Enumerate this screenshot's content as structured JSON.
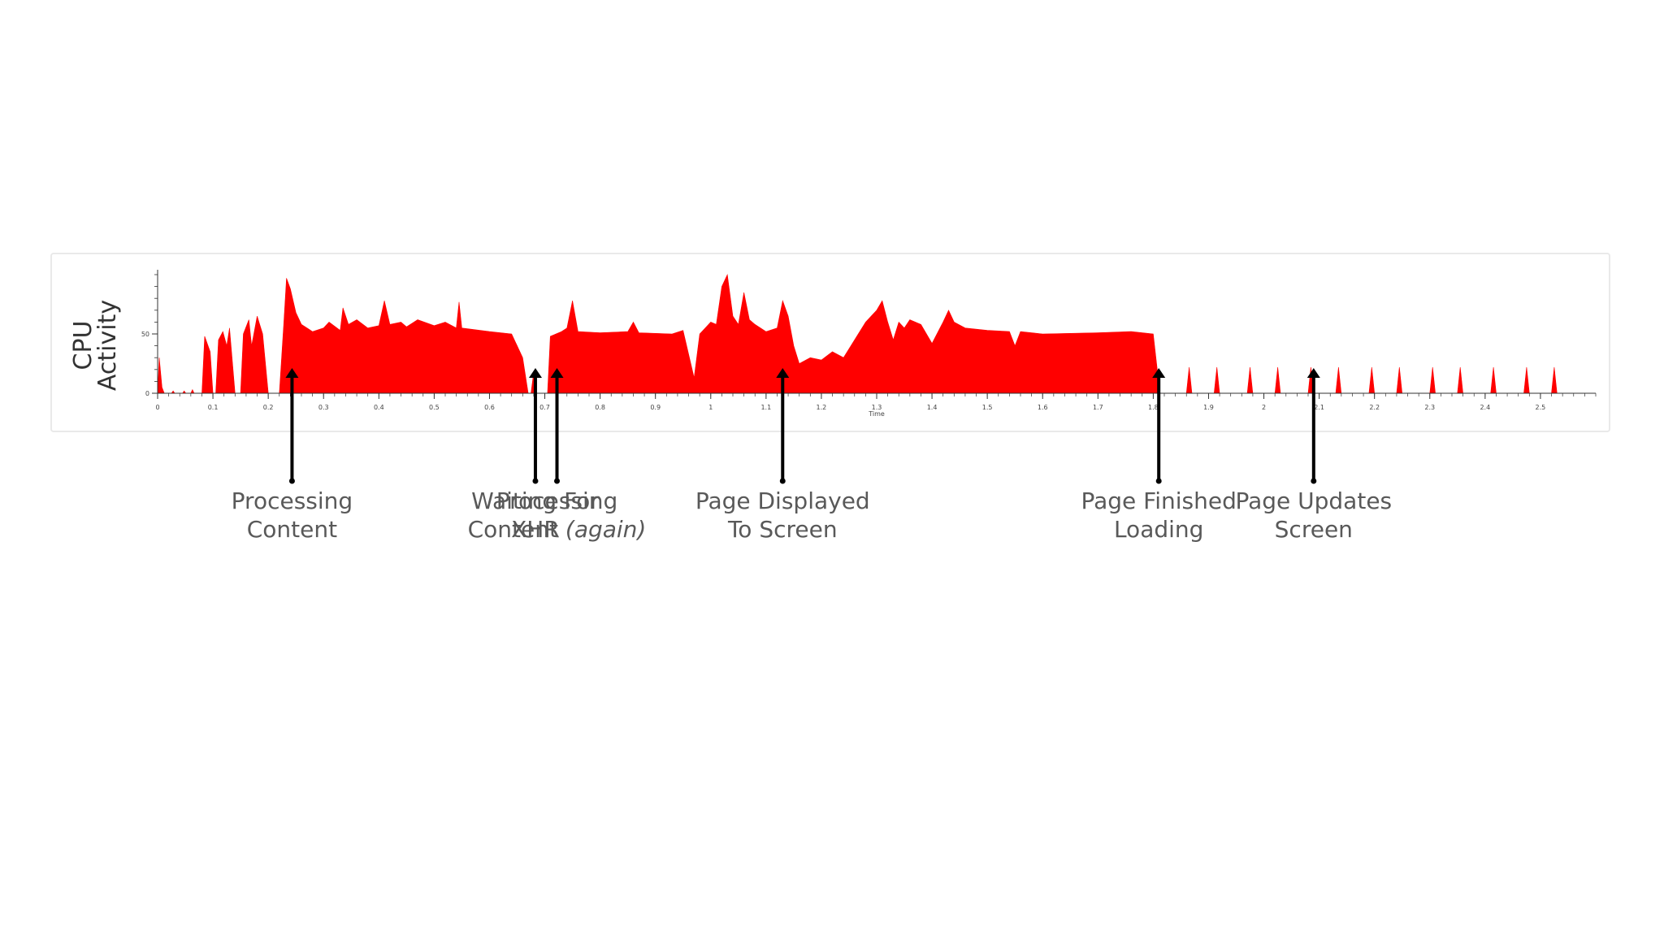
{
  "colors": {
    "area": "#ff0000",
    "arrow": "#000000",
    "label": "#595959",
    "axis": "#333333"
  },
  "chart_data": {
    "type": "area",
    "ylabel_lines": [
      "CPU",
      "Activity"
    ],
    "xlabel": "Time",
    "xlim": [
      0,
      2.6
    ],
    "ylim": [
      0,
      100
    ],
    "yticks": [
      "0",
      "50"
    ],
    "ytick_values": [
      0,
      50
    ],
    "xticks": [
      "0",
      "0.1",
      "0.2",
      "0.3",
      "0.4",
      "0.5",
      "0.6",
      "0.7",
      "0.8",
      "0.9",
      "1",
      "1.1",
      "1.2",
      "1.3",
      "1.4",
      "1.5",
      "1.6",
      "1.7",
      "1.8",
      "1.9",
      "2",
      "2.1",
      "2.2",
      "2.3",
      "2.4",
      "2.5"
    ],
    "xtick_values": [
      0,
      0.1,
      0.2,
      0.3,
      0.4,
      0.5,
      0.6,
      0.7,
      0.8,
      0.9,
      1,
      1.1,
      1.2,
      1.3,
      1.4,
      1.5,
      1.6,
      1.7,
      1.8,
      1.9,
      2,
      2.1,
      2.2,
      2.3,
      2.4,
      2.5
    ],
    "grid": false,
    "series": [
      {
        "points": [
          [
            0,
            0
          ],
          [
            0.003,
            30
          ],
          [
            0.008,
            5
          ],
          [
            0.012,
            0
          ],
          [
            0.025,
            0
          ],
          [
            0.028,
            2
          ],
          [
            0.031,
            0
          ],
          [
            0.045,
            0
          ],
          [
            0.048,
            2
          ],
          [
            0.051,
            0
          ],
          [
            0.06,
            0
          ],
          [
            0.063,
            3
          ],
          [
            0.066,
            0
          ],
          [
            0.08,
            0
          ],
          [
            0.085,
            48
          ],
          [
            0.095,
            35
          ],
          [
            0.1,
            0
          ],
          [
            0.105,
            0
          ],
          [
            0.11,
            45
          ],
          [
            0.118,
            52
          ],
          [
            0.125,
            40
          ],
          [
            0.13,
            55
          ],
          [
            0.14,
            0
          ],
          [
            0.15,
            0
          ],
          [
            0.155,
            50
          ],
          [
            0.165,
            62
          ],
          [
            0.17,
            40
          ],
          [
            0.18,
            65
          ],
          [
            0.19,
            50
          ],
          [
            0.2,
            0
          ],
          [
            0.22,
            0
          ],
          [
            0.228,
            58
          ],
          [
            0.233,
            97
          ],
          [
            0.24,
            88
          ],
          [
            0.25,
            68
          ],
          [
            0.26,
            58
          ],
          [
            0.28,
            52
          ],
          [
            0.3,
            55
          ],
          [
            0.31,
            60
          ],
          [
            0.33,
            53
          ],
          [
            0.335,
            72
          ],
          [
            0.345,
            58
          ],
          [
            0.36,
            62
          ],
          [
            0.38,
            55
          ],
          [
            0.4,
            57
          ],
          [
            0.41,
            78
          ],
          [
            0.42,
            58
          ],
          [
            0.44,
            60
          ],
          [
            0.45,
            56
          ],
          [
            0.47,
            62
          ],
          [
            0.5,
            57
          ],
          [
            0.52,
            60
          ],
          [
            0.54,
            55
          ],
          [
            0.545,
            77
          ],
          [
            0.55,
            55
          ],
          [
            0.6,
            52
          ],
          [
            0.64,
            50
          ],
          [
            0.66,
            30
          ],
          [
            0.67,
            0
          ],
          [
            0.675,
            0
          ],
          [
            0.68,
            18
          ],
          [
            0.685,
            0
          ],
          [
            0.69,
            0
          ],
          [
            0.705,
            0
          ],
          [
            0.71,
            48
          ],
          [
            0.72,
            50
          ],
          [
            0.73,
            52
          ],
          [
            0.74,
            55
          ],
          [
            0.75,
            78
          ],
          [
            0.76,
            52
          ],
          [
            0.8,
            51
          ],
          [
            0.85,
            52
          ],
          [
            0.86,
            60
          ],
          [
            0.87,
            51
          ],
          [
            0.93,
            50
          ],
          [
            0.95,
            53
          ],
          [
            0.97,
            13
          ],
          [
            0.98,
            50
          ],
          [
            0.99,
            55
          ],
          [
            1.0,
            60
          ],
          [
            1.01,
            58
          ],
          [
            1.02,
            90
          ],
          [
            1.03,
            100
          ],
          [
            1.04,
            65
          ],
          [
            1.05,
            58
          ],
          [
            1.06,
            85
          ],
          [
            1.07,
            62
          ],
          [
            1.08,
            58
          ],
          [
            1.1,
            52
          ],
          [
            1.12,
            55
          ],
          [
            1.13,
            78
          ],
          [
            1.14,
            65
          ],
          [
            1.15,
            40
          ],
          [
            1.16,
            25
          ],
          [
            1.18,
            30
          ],
          [
            1.2,
            28
          ],
          [
            1.22,
            35
          ],
          [
            1.24,
            30
          ],
          [
            1.26,
            45
          ],
          [
            1.28,
            60
          ],
          [
            1.3,
            70
          ],
          [
            1.31,
            78
          ],
          [
            1.32,
            60
          ],
          [
            1.33,
            45
          ],
          [
            1.34,
            60
          ],
          [
            1.35,
            55
          ],
          [
            1.36,
            62
          ],
          [
            1.38,
            58
          ],
          [
            1.4,
            42
          ],
          [
            1.42,
            60
          ],
          [
            1.43,
            70
          ],
          [
            1.44,
            60
          ],
          [
            1.46,
            55
          ],
          [
            1.5,
            53
          ],
          [
            1.54,
            52
          ],
          [
            1.55,
            40
          ],
          [
            1.56,
            52
          ],
          [
            1.6,
            50
          ],
          [
            1.7,
            51
          ],
          [
            1.76,
            52
          ],
          [
            1.8,
            50
          ],
          [
            1.812,
            0
          ],
          [
            1.86,
            0
          ],
          [
            1.865,
            22
          ],
          [
            1.87,
            0
          ],
          [
            1.91,
            0
          ],
          [
            1.915,
            22
          ],
          [
            1.92,
            0
          ],
          [
            1.97,
            0
          ],
          [
            1.975,
            22
          ],
          [
            1.98,
            0
          ],
          [
            2.02,
            0
          ],
          [
            2.025,
            22
          ],
          [
            2.03,
            0
          ],
          [
            2.08,
            0
          ],
          [
            2.085,
            22
          ],
          [
            2.09,
            0
          ],
          [
            2.13,
            0
          ],
          [
            2.135,
            22
          ],
          [
            2.14,
            0
          ],
          [
            2.19,
            0
          ],
          [
            2.195,
            22
          ],
          [
            2.2,
            0
          ],
          [
            2.24,
            0
          ],
          [
            2.245,
            22
          ],
          [
            2.25,
            0
          ],
          [
            2.3,
            0
          ],
          [
            2.305,
            22
          ],
          [
            2.31,
            0
          ],
          [
            2.35,
            0
          ],
          [
            2.355,
            22
          ],
          [
            2.36,
            0
          ],
          [
            2.41,
            0
          ],
          [
            2.415,
            22
          ],
          [
            2.42,
            0
          ],
          [
            2.47,
            0
          ],
          [
            2.475,
            22
          ],
          [
            2.48,
            0
          ],
          [
            2.52,
            0
          ],
          [
            2.525,
            22
          ],
          [
            2.53,
            0
          ],
          [
            2.6,
            0
          ]
        ]
      }
    ],
    "annotations": [
      {
        "x": 0.243,
        "line1": "Processing",
        "line2": "Content",
        "italic2": ""
      },
      {
        "x": 0.683,
        "line1": "Waiting For",
        "line2": "XHR",
        "italic2": ""
      },
      {
        "x": 0.722,
        "line1": "Processing",
        "line2": "Content ",
        "italic2": "(again)"
      },
      {
        "x": 1.13,
        "line1": "Page Displayed",
        "line2": "To Screen",
        "italic2": ""
      },
      {
        "x": 1.81,
        "line1": "Page Finished",
        "line2": "Loading",
        "italic2": ""
      },
      {
        "x": 2.09,
        "line1": "Page Updates",
        "line2": "Screen",
        "italic2": ""
      }
    ]
  }
}
